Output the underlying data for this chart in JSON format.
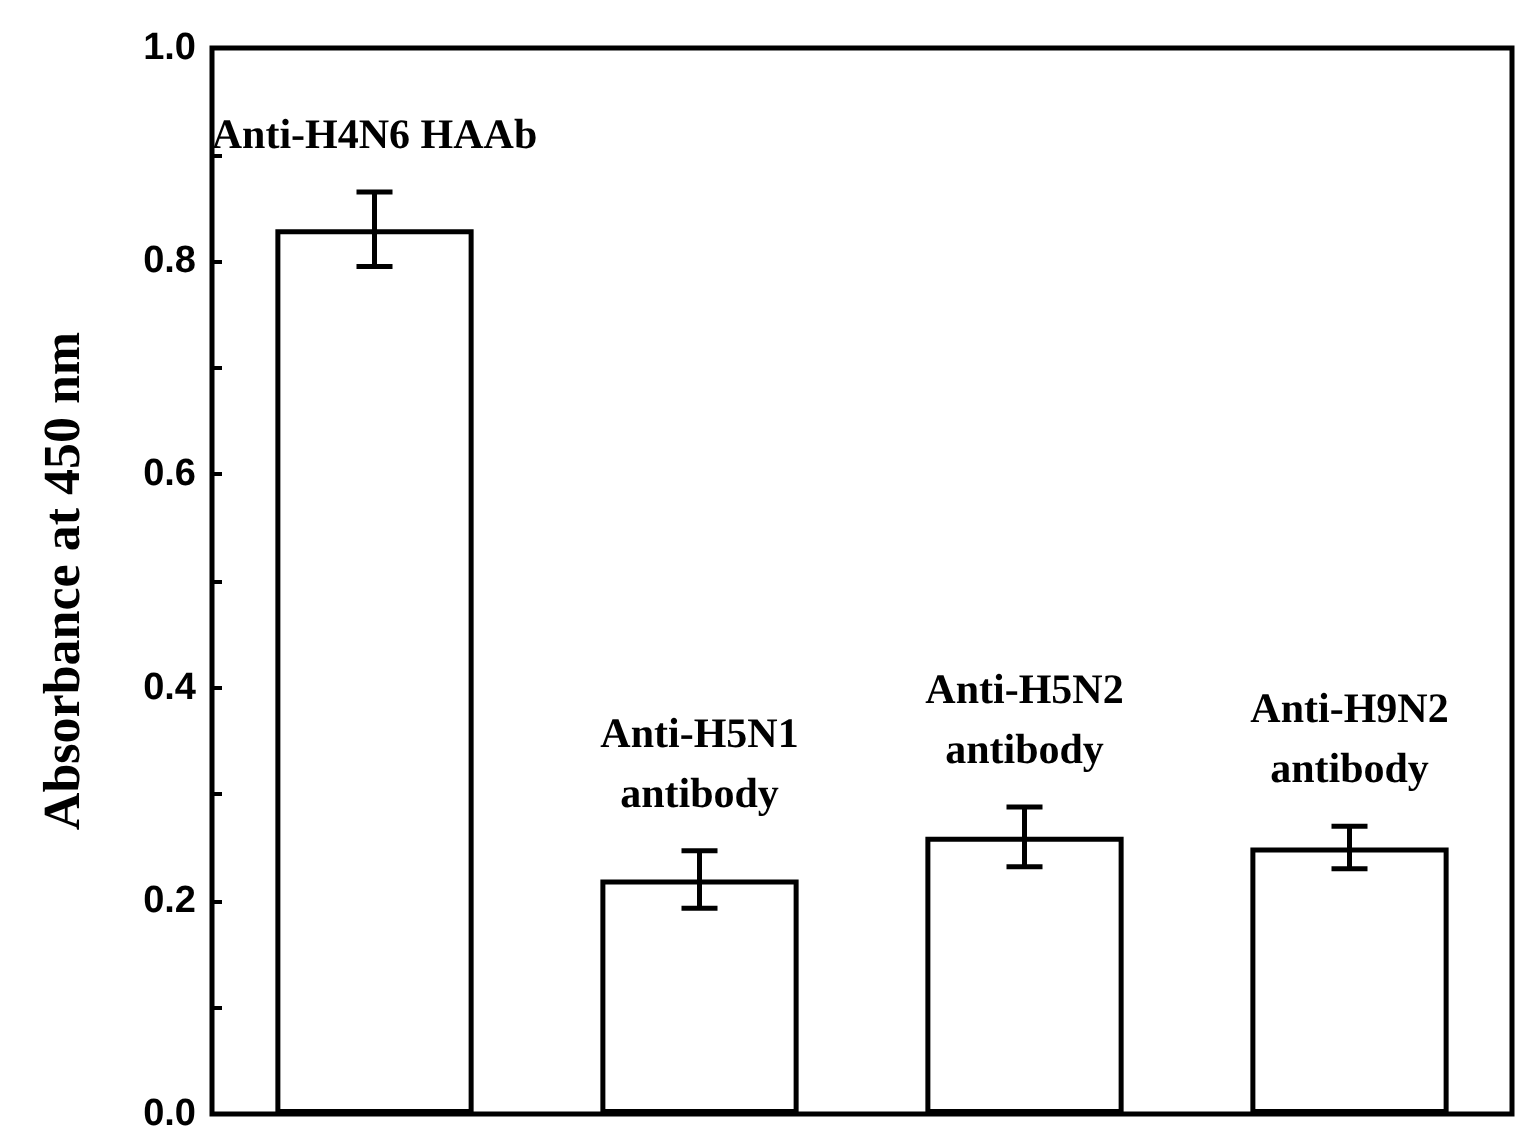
{
  "chart_data": {
    "type": "bar",
    "ylabel": "Absorbance at 450 nm",
    "categories": [
      null,
      null,
      null,
      null
    ],
    "values": [
      0.83,
      0.22,
      0.26,
      0.25
    ],
    "errors": [
      0.035,
      0.027,
      0.028,
      0.02
    ],
    "color": "#ffffff",
    "ylim": [
      0,
      1.0
    ],
    "yticks": [
      {
        "value": 0,
        "label": "0.0"
      },
      {
        "value": 0.1,
        "label": null
      },
      {
        "value": 0.2,
        "label": "0.2"
      },
      {
        "value": 0.3,
        "label": null
      },
      {
        "value": 0.4,
        "label": "0.4"
      },
      {
        "value": 0.5,
        "label": null
      },
      {
        "value": 0.6,
        "label": "0.6"
      },
      {
        "value": 0.7,
        "label": null
      },
      {
        "value": 0.8,
        "label": "0.8"
      },
      {
        "value": 0.9,
        "label": null
      },
      {
        "value": 1.0,
        "label": "1.0"
      }
    ],
    "annotations": [
      "Anti-H4N6 HAAb",
      "Anti-H5N1\nantibody",
      "Anti-H5N2\nantibody",
      "Anti-H9N2\nantibody"
    ],
    "grid": false
  }
}
